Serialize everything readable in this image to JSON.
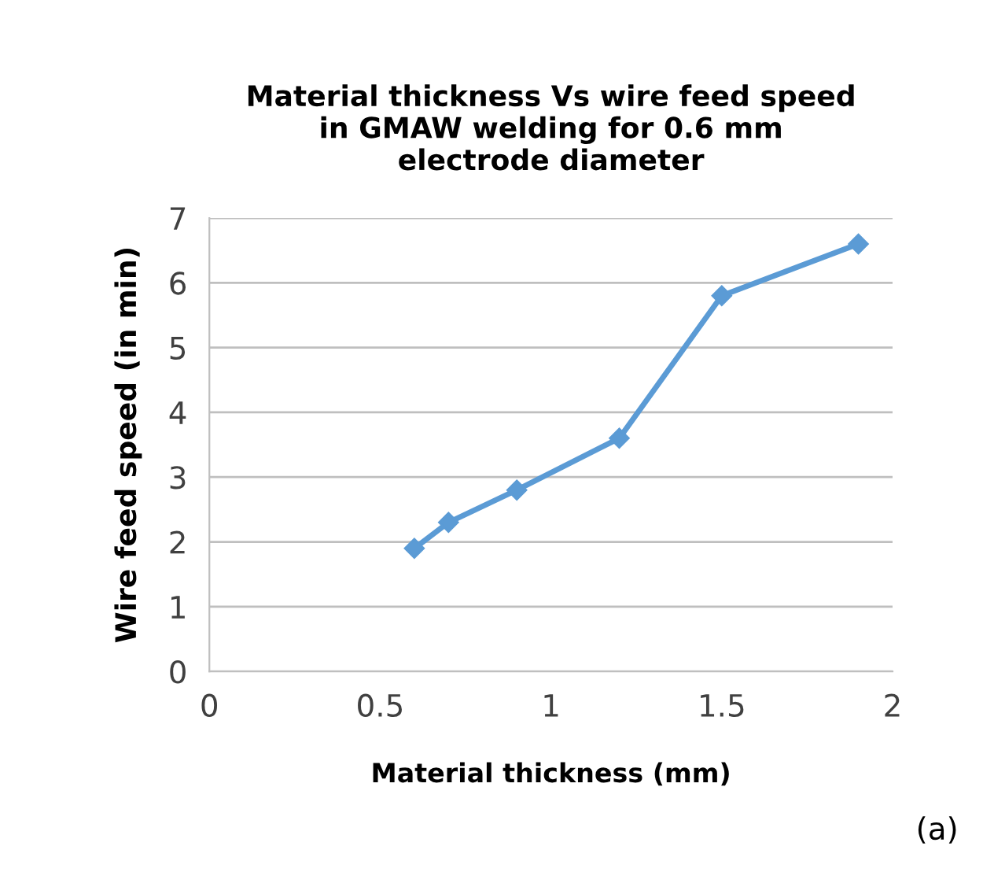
{
  "chart_data": {
    "type": "line",
    "title": "Material thickness Vs wire feed speed\nin GMAW welding for 0.6 mm\nelectrode diameter",
    "xlabel": "Material thickness (mm)",
    "ylabel": "Wire feed speed (in min)",
    "annotations": [
      "(a)"
    ],
    "x": [
      0.6,
      0.7,
      0.9,
      1.2,
      1.5,
      1.9
    ],
    "series": [
      {
        "color": "#5b9bd5",
        "values": [
          1.9,
          2.3,
          2.8,
          3.6,
          5.8,
          6.6
        ]
      }
    ],
    "xlim": [
      0,
      2
    ],
    "xticks": [
      0,
      0.5,
      1,
      1.5,
      2
    ],
    "ylim": [
      0,
      7
    ],
    "yticks": [
      0,
      1,
      2,
      3,
      4,
      5,
      6,
      7
    ],
    "grid": "y",
    "marker": "diamond",
    "line_style": "solid",
    "legend": false
  }
}
